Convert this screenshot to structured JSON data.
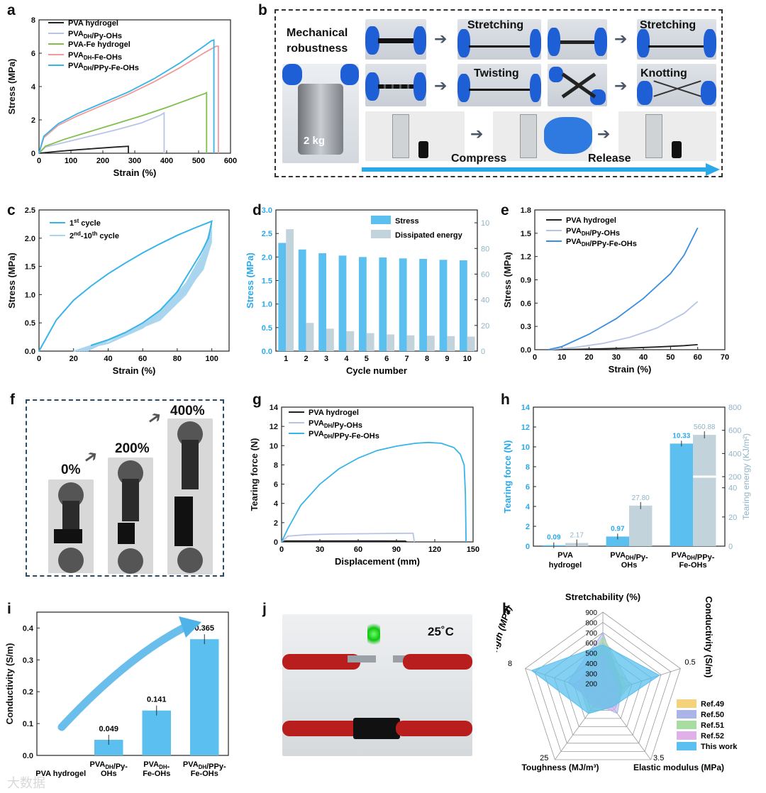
{
  "panels": {
    "a": {
      "label": "a",
      "type": "line",
      "xlabel": "Strain (%)",
      "ylabel": "Stress (MPa)",
      "xticks": [
        "0",
        "100",
        "200",
        "300",
        "400",
        "500",
        "600"
      ],
      "yticks": [
        "0",
        "2",
        "4",
        "6",
        "8"
      ],
      "xlim": [
        0,
        600
      ],
      "ylim": [
        0,
        8.6
      ],
      "legend": [
        "PVA hydrogel",
        "PVA_DH/Py-OHs",
        "PVA-Fe hydrogel",
        "PVA_DH-Fe-OHs",
        "PVA_DH/PPy-Fe-OHs"
      ],
      "series": [
        {
          "name": "PVA hydrogel",
          "color": "#222222",
          "x": [
            0,
            60,
            120,
            180,
            240,
            280,
            280
          ],
          "y": [
            0,
            0.12,
            0.22,
            0.31,
            0.4,
            0.45,
            0
          ]
        },
        {
          "name": "PVA_DH/Py-OHs",
          "color": "#b7c4e6",
          "x": [
            0,
            20,
            80,
            160,
            240,
            320,
            380,
            392,
            392
          ],
          "y": [
            0,
            0.4,
            0.7,
            1.1,
            1.5,
            1.95,
            2.45,
            2.6,
            0
          ]
        },
        {
          "name": "PVA-Fe hydrogel",
          "color": "#7fbf4a",
          "x": [
            0,
            20,
            80,
            160,
            240,
            320,
            400,
            480,
            520,
            525,
            525
          ],
          "y": [
            0,
            0.45,
            0.9,
            1.4,
            1.9,
            2.4,
            2.95,
            3.55,
            3.85,
            3.9,
            0
          ]
        },
        {
          "name": "PVA_DH-Fe-OHs",
          "color": "#f09a9a",
          "x": [
            0,
            15,
            60,
            120,
            200,
            280,
            360,
            440,
            520,
            555,
            562,
            562
          ],
          "y": [
            0,
            1.0,
            1.8,
            2.4,
            3.1,
            3.8,
            4.6,
            5.5,
            6.5,
            6.9,
            6.9,
            0
          ]
        },
        {
          "name": "PVA_DH/PPy-Fe-OHs",
          "color": "#37b4e8",
          "x": [
            0,
            15,
            60,
            120,
            200,
            280,
            360,
            440,
            520,
            540,
            548,
            548
          ],
          "y": [
            0,
            1.1,
            1.9,
            2.55,
            3.25,
            3.95,
            4.8,
            5.8,
            6.95,
            7.25,
            7.3,
            0
          ]
        }
      ]
    },
    "b": {
      "label": "b",
      "title_lines": [
        "Mechanical",
        "robustness"
      ],
      "weight": "2 kg",
      "captions": {
        "stretch1": "Stretching",
        "stretch2": "Stretching",
        "twist": "Twisting",
        "knot": "Knotting",
        "compress": "Compress",
        "release": "Release"
      }
    },
    "c": {
      "label": "c",
      "type": "line",
      "xlabel": "Strain (%)",
      "ylabel": "Stress (MPa)",
      "xticks": [
        "0",
        "20",
        "40",
        "60",
        "80",
        "100"
      ],
      "yticks": [
        "0.0",
        "0.5",
        "1.0",
        "1.5",
        "2.0",
        "2.5"
      ],
      "xlim": [
        0,
        110
      ],
      "ylim": [
        0,
        2.5
      ],
      "legend_1": "1",
      "legend_1_sup": "st",
      "legend_1_tail": " cycle",
      "legend_2": "2",
      "legend_2_sup": "nd",
      "legend_2_mid": "-10",
      "legend_2_sup2": "th",
      "legend_2_tail": " cycle",
      "colors": {
        "first": "#37b4e8",
        "rest": "#a9d6ee"
      },
      "first_cycle": {
        "x": [
          0,
          10,
          20,
          30,
          40,
          50,
          60,
          70,
          80,
          90,
          100,
          98,
          94,
          88,
          80,
          70,
          60,
          50,
          40,
          30
        ],
        "y": [
          0,
          0.55,
          0.9,
          1.15,
          1.37,
          1.56,
          1.74,
          1.9,
          2.05,
          2.18,
          2.3,
          2.0,
          1.75,
          1.45,
          1.05,
          0.72,
          0.5,
          0.33,
          0.2,
          0.1
        ]
      }
    },
    "d": {
      "label": "d",
      "type": "bar",
      "xlabel": "Cycle number",
      "ylabel": "Stress (MPa)",
      "y2label": "Dissipated energy (MJ/m³)",
      "categories": [
        "1",
        "2",
        "3",
        "4",
        "5",
        "6",
        "7",
        "8",
        "9",
        "10"
      ],
      "yticks": [
        "0.0",
        "0.5",
        "1.0",
        "1.5",
        "2.0",
        "2.5",
        "3.0"
      ],
      "y2ticks": [
        "0",
        "20",
        "40",
        "60",
        "80",
        "100"
      ],
      "ylim": [
        0,
        3.0
      ],
      "y2lim": [
        0,
        110
      ],
      "legend": [
        "Stress",
        "Dissipated energy"
      ],
      "series": [
        {
          "name": "Stress",
          "color": "#5bc0ef",
          "values": [
            2.3,
            2.16,
            2.08,
            2.03,
            2.0,
            1.99,
            1.97,
            1.96,
            1.94,
            1.93
          ]
        },
        {
          "name": "Dissipated energy",
          "color": "#c3d3dc",
          "values": [
            95,
            22,
            17.5,
            15.5,
            14,
            13,
            12.3,
            12,
            11.7,
            11.3
          ]
        }
      ]
    },
    "e": {
      "label": "e",
      "type": "line",
      "xlabel": "Strain (%)",
      "ylabel": "Stress (MPa)",
      "xticks": [
        "0",
        "10",
        "20",
        "30",
        "40",
        "50",
        "60",
        "70"
      ],
      "yticks": [
        "0.0",
        "0.3",
        "0.6",
        "0.9",
        "1.2",
        "1.5",
        "1.8"
      ],
      "xlim": [
        0,
        70
      ],
      "ylim": [
        0,
        1.8
      ],
      "legend": [
        "PVA hydrogel",
        "PVA_DH/Py-OHs",
        "PVA_DH/PPy-Fe-OHs"
      ],
      "series": [
        {
          "name": "PVA hydrogel",
          "color": "#222222",
          "x": [
            5,
            15,
            25,
            35,
            45,
            55,
            60
          ],
          "y": [
            0,
            0.005,
            0.012,
            0.022,
            0.035,
            0.052,
            0.065
          ]
        },
        {
          "name": "PVA_DH/Py-OHs",
          "color": "#b7c4e6",
          "x": [
            5,
            15,
            25,
            35,
            45,
            55,
            60
          ],
          "y": [
            0,
            0.03,
            0.08,
            0.16,
            0.28,
            0.47,
            0.62
          ]
        },
        {
          "name": "PVA_DH/PPy-Fe-OHs",
          "color": "#3a8ee0",
          "x": [
            5,
            10,
            20,
            30,
            40,
            50,
            55,
            60
          ],
          "y": [
            0,
            0.04,
            0.2,
            0.4,
            0.66,
            0.98,
            1.22,
            1.57
          ]
        }
      ]
    },
    "f": {
      "label": "f",
      "strains": [
        "0%",
        "200%",
        "400%"
      ]
    },
    "g": {
      "label": "g",
      "type": "line",
      "xlabel": "Displacement (mm)",
      "ylabel": "Tearing force (N)",
      "xticks": [
        "0",
        "30",
        "60",
        "90",
        "120",
        "150"
      ],
      "yticks": [
        "0",
        "2",
        "4",
        "6",
        "8",
        "10",
        "12",
        "14"
      ],
      "xlim": [
        0,
        150
      ],
      "ylim": [
        0,
        14
      ],
      "legend": [
        "PVA hydrogel",
        "PVA_DH/Py-OHs",
        "PVA_DH/PPy-Fe-OHs"
      ],
      "series": [
        {
          "name": "PVA hydrogel",
          "color": "#222222",
          "x": [
            0,
            3,
            20,
            50,
            80,
            97,
            98
          ],
          "y": [
            0,
            0.1,
            0.1,
            0.1,
            0.1,
            0.08,
            0
          ]
        },
        {
          "name": "PVA_DH/Py-OHs",
          "color": "#b7c4e6",
          "x": [
            0,
            5,
            20,
            40,
            60,
            80,
            100,
            103,
            104
          ],
          "y": [
            0,
            0.6,
            0.75,
            0.82,
            0.85,
            0.88,
            0.9,
            0.9,
            0
          ]
        },
        {
          "name": "PVA_DH/PPy-Fe-OHs",
          "color": "#37b4e8",
          "x": [
            0,
            5,
            15,
            30,
            45,
            60,
            75,
            90,
            105,
            115,
            125,
            135,
            140,
            143,
            144,
            144.5
          ],
          "y": [
            0,
            1.4,
            3.8,
            6.0,
            7.6,
            8.7,
            9.5,
            9.95,
            10.25,
            10.33,
            10.25,
            9.8,
            9.1,
            8.0,
            5.0,
            0
          ]
        }
      ]
    },
    "h": {
      "label": "h",
      "type": "bar",
      "ylabel": "Tearing force (N)",
      "y2label": "Tearing energy (KJ/m²)",
      "categories": [
        "PVA hydrogel",
        "PVA_DH/Py-OHs",
        "PVA_DH/PPy-Fe-OHs"
      ],
      "cat_lines": [
        [
          "PVA",
          "hydrogel"
        ],
        [
          "PVA",
          "/Py-"
        ],
        [
          "PVA",
          "/PPy-"
        ]
      ],
      "cat_lines_full": [
        [
          "PVA",
          "hydrogel"
        ],
        [
          "PVADH/Py-",
          "OHs"
        ],
        [
          "PVADH/PPy-",
          "Fe-OHs"
        ]
      ],
      "yticks": [
        "0",
        "2",
        "4",
        "6",
        "8",
        "10",
        "12",
        "14"
      ],
      "y2ticks": [
        "0",
        "20",
        "40",
        "200",
        "400",
        "600",
        "800"
      ],
      "ylim": [
        0,
        14
      ],
      "series": [
        {
          "name": "Tearing force",
          "color": "#5bc0ef",
          "values": [
            0.09,
            0.97,
            10.33
          ],
          "labels": [
            "0.09",
            "0.97",
            "10.33"
          ]
        },
        {
          "name": "Tearing energy",
          "color": "#c3d3dc",
          "values": [
            2.17,
            27.8,
            560.88
          ],
          "labels": [
            "2.17",
            "27.80",
            "560.88"
          ]
        }
      ]
    },
    "i": {
      "label": "i",
      "type": "bar",
      "ylabel": "Conductivity (S/m)",
      "categories": [
        "PVA hydrogel",
        "PVA_DH/Py-OHs",
        "PVA_DH-Fe-OHs",
        "PVA_DH/PPy-Fe-OHs"
      ],
      "yticks": [
        "0.0",
        "0.1",
        "0.2",
        "0.3",
        "0.4"
      ],
      "ylim": [
        0,
        0.45
      ],
      "values": [
        0,
        0.049,
        0.141,
        0.365
      ],
      "labels": [
        "",
        "0.049",
        "0.141",
        "0.365"
      ],
      "color": "#5bc0ef"
    },
    "j": {
      "label": "j",
      "temperature": "25˚C"
    },
    "k": {
      "label": "k",
      "type": "radar",
      "axes": [
        "Stretchability (%)",
        "Conductivity (S/m)",
        "Elastic modulus (MPa)",
        "Toughness (MJ/m³)",
        "Strength (MPa)"
      ],
      "axis_max_labels": [
        "900",
        "0.5",
        "3.5",
        "25",
        "8"
      ],
      "stretch_ticks": [
        "200",
        "300",
        "400",
        "500",
        "600",
        "700",
        "800",
        "900"
      ],
      "legend": [
        "Ref.49",
        "Ref.50",
        "Ref.51",
        "Ref.52",
        "This work"
      ],
      "colors": [
        "#f4d27a",
        "#aab4e8",
        "#a8dca0",
        "#e0b0e8",
        "#5bc0ef"
      ],
      "series": [
        {
          "name": "Ref.49",
          "values": [
            0.6,
            0.3,
            0.15,
            0.2,
            0.25
          ]
        },
        {
          "name": "Ref.50",
          "values": [
            0.75,
            0.25,
            0.3,
            0.15,
            0.45
          ]
        },
        {
          "name": "Ref.51",
          "values": [
            0.7,
            0.35,
            0.2,
            0.3,
            0.3
          ]
        },
        {
          "name": "Ref.52",
          "values": [
            0.5,
            0.2,
            0.25,
            0.2,
            0.35
          ]
        },
        {
          "name": "This work",
          "values": [
            0.6,
            0.73,
            0.2,
            0.3,
            0.92
          ]
        }
      ]
    }
  },
  "watermark": "大数据"
}
